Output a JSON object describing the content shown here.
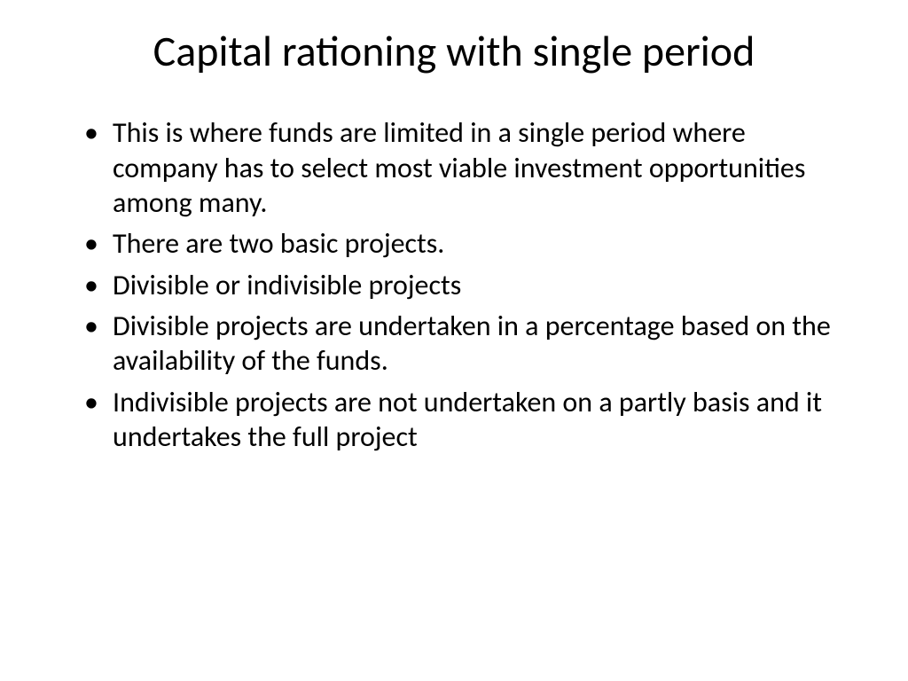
{
  "slide": {
    "title": "Capital rationing with single period",
    "bullets": [
      "This is where funds are limited in a single period where company has to select most viable investment opportunities among many.",
      "There are two basic projects.",
      "Divisible or indivisible projects",
      "Divisible projects are undertaken in a percentage based on the availability of the funds.",
      "Indivisible projects are not undertaken on a partly basis and it undertakes the full project"
    ],
    "styling": {
      "background_color": "#ffffff",
      "text_color": "#000000",
      "title_fontsize": 48,
      "title_fontweight": 400,
      "body_fontsize": 32,
      "body_fontweight": 400,
      "font_family": "Calibri",
      "bullet_marker": "•"
    }
  }
}
